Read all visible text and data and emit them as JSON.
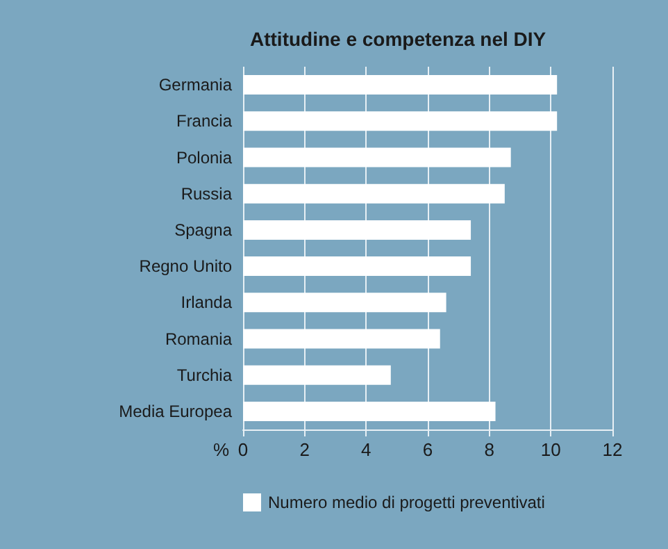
{
  "chart_data": {
    "type": "bar",
    "orientation": "horizontal",
    "title": "Attitudine e competenza nel DIY",
    "xlabel": "%",
    "categories": [
      "Germania",
      "Francia",
      "Polonia",
      "Russia",
      "Spagna",
      "Regno Unito",
      "Irlanda",
      "Romania",
      "Turchia",
      "Media Europea"
    ],
    "series": [
      {
        "name": "Numero medio di progetti preventivati",
        "color": "#ffffff",
        "values": [
          10.2,
          10.2,
          8.7,
          8.5,
          7.4,
          7.4,
          6.6,
          6.4,
          4.8,
          8.2
        ]
      }
    ],
    "xlim": [
      0,
      12
    ],
    "xticks": [
      0,
      2,
      4,
      6,
      8,
      10,
      12
    ],
    "grid": "x",
    "legend": "bottom"
  }
}
